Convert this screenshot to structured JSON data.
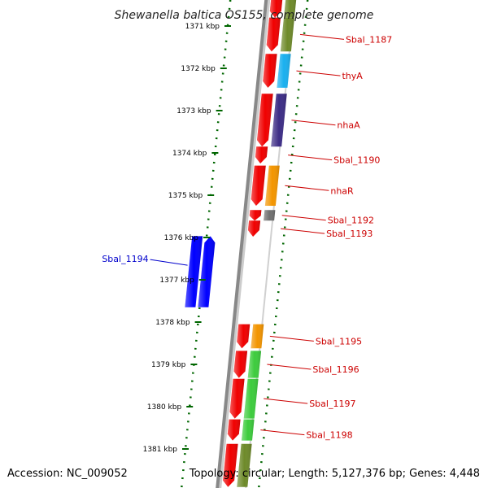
{
  "title": "Shewanella baltica OS155, complete genome",
  "footer": {
    "accession": "Accession: NC_009052",
    "topology": "Topology: circular; Length: 5,127,376 bp; Genes: 4,448"
  },
  "ticks": [
    {
      "label": "1371 kbp",
      "pos": 1371
    },
    {
      "label": "1372 kbp",
      "pos": 1372
    },
    {
      "label": "1373 kbp",
      "pos": 1373
    },
    {
      "label": "1374 kbp",
      "pos": 1374
    },
    {
      "label": "1375 kbp",
      "pos": 1375
    },
    {
      "label": "1376 kbp",
      "pos": 1376
    },
    {
      "label": "1377 kbp",
      "pos": 1377
    },
    {
      "label": "1378 kbp",
      "pos": 1378
    },
    {
      "label": "1379 kbp",
      "pos": 1379
    },
    {
      "label": "1380 kbp",
      "pos": 1380
    },
    {
      "label": "1381 kbp",
      "pos": 1381
    }
  ],
  "genes": [
    {
      "label": "",
      "start": 1370.3,
      "end": 1370.8,
      "strand": "minus",
      "cog_color": "#6e8a2a"
    },
    {
      "label": "Sbal_1187",
      "start": 1370.8,
      "end": 1371.6,
      "strand": "minus",
      "cog_color": "#6e8a2a"
    },
    {
      "label": "thyA",
      "start": 1371.66,
      "end": 1372.46,
      "strand": "minus",
      "cog_color": "#1ab0ef"
    },
    {
      "label": "nhaA",
      "start": 1372.6,
      "end": 1373.85,
      "strand": "minus",
      "cog_color": "#3d2d86"
    },
    {
      "label": "Sbal_1190",
      "start": 1373.85,
      "end": 1374.25,
      "strand": "minus",
      "cog_color": ""
    },
    {
      "label": "nhaR",
      "start": 1374.3,
      "end": 1375.25,
      "strand": "minus",
      "cog_color": "#f39500"
    },
    {
      "label": "Sbal_1192",
      "start": 1375.35,
      "end": 1375.6,
      "strand": "minus",
      "cog_color": "#707070"
    },
    {
      "label": "Sbal_1193",
      "start": 1375.6,
      "end": 1375.98,
      "strand": "minus",
      "cog_color": ""
    },
    {
      "label": "Sbal_1195",
      "start": 1378.05,
      "end": 1378.62,
      "strand": "minus",
      "cog_color": "#f39500"
    },
    {
      "label": "Sbal_1196",
      "start": 1378.68,
      "end": 1379.32,
      "strand": "minus",
      "cog_color": "#3dcc3d"
    },
    {
      "label": "Sbal_1197",
      "start": 1379.34,
      "end": 1380.28,
      "strand": "minus",
      "cog_color": "#3dcc3d"
    },
    {
      "label": "Sbal_1198",
      "start": 1380.3,
      "end": 1380.8,
      "strand": "minus",
      "cog_color": "#3dcc3d"
    },
    {
      "label": "",
      "start": 1380.88,
      "end": 1381.9,
      "strand": "minus",
      "cog_color": "#6e8a2a"
    }
  ],
  "plus_genes": [
    {
      "label": "Sbal_1194",
      "start": 1375.97,
      "end": 1377.65,
      "strand": "minus"
    },
    {
      "label": "",
      "start": 1375.97,
      "end": 1377.65,
      "strand": "plus"
    }
  ],
  "colors": {
    "cds": "#f00000",
    "plus_cds": "#0000ff",
    "backbone": "#888888",
    "ticks": "#006600",
    "label_minus": "#cc0000",
    "label_plus": "#0000cc"
  }
}
